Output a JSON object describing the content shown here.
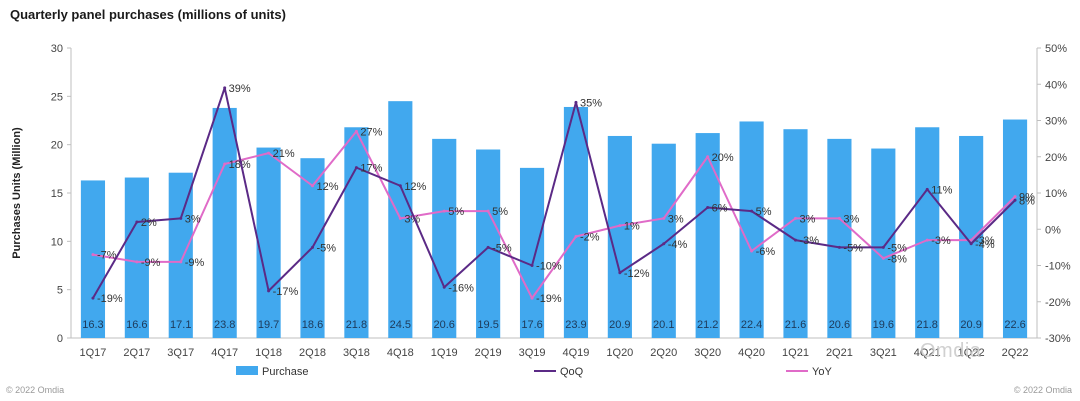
{
  "chart_data": {
    "type": "bar",
    "title": "Quarterly panel purchases (millions of units)",
    "ylabel": "Purchases Units (Million)",
    "ylim": [
      0,
      30
    ],
    "y_ticks": [
      0,
      5,
      10,
      15,
      20,
      25,
      30
    ],
    "y2lim": [
      -30,
      50
    ],
    "y2_ticks": [
      "-30%",
      "-20%",
      "-10%",
      "0%",
      "10%",
      "20%",
      "30%",
      "40%",
      "50%"
    ],
    "categories": [
      "1Q17",
      "2Q17",
      "3Q17",
      "4Q17",
      "1Q18",
      "2Q18",
      "3Q18",
      "4Q18",
      "1Q19",
      "2Q19",
      "3Q19",
      "4Q19",
      "1Q20",
      "2Q20",
      "3Q20",
      "4Q20",
      "1Q21",
      "2Q21",
      "3Q21",
      "4Q21",
      "1Q22",
      "2Q22"
    ],
    "series": [
      {
        "name": "Purchase",
        "type": "bar",
        "axis": "left",
        "color": "#41A8EE",
        "values": [
          16.3,
          16.6,
          17.1,
          23.8,
          19.7,
          18.6,
          21.8,
          24.5,
          20.6,
          19.5,
          17.6,
          23.9,
          20.9,
          20.1,
          21.2,
          22.4,
          21.6,
          20.6,
          19.6,
          21.8,
          20.9,
          22.6
        ],
        "labels": [
          "16.3",
          "16.6",
          "17.1",
          "23.8",
          "19.7",
          "18.6",
          "21.8",
          "24.5",
          "20.6",
          "19.5",
          "17.6",
          "23.9",
          "20.9",
          "20.1",
          "21.2",
          "22.4",
          "21.6",
          "20.6",
          "19.6",
          "21.8",
          "20.9",
          "22.6"
        ]
      },
      {
        "name": "QoQ",
        "type": "line",
        "axis": "right",
        "color": "#5B2A86",
        "values": [
          -19,
          2,
          3,
          39,
          -17,
          -5,
          17,
          12,
          -16,
          -5,
          -10,
          35,
          -12,
          -4,
          6,
          5,
          -3,
          -5,
          -5,
          11,
          -4,
          8
        ],
        "labels": [
          "-19%",
          "2%",
          "3%",
          "39%",
          "-17%",
          "-5%",
          "17%",
          "12%",
          "-16%",
          "-5%",
          "-10%",
          "35%",
          "-12%",
          "-4%",
          "6%",
          "5%",
          "-3%",
          "-5%",
          "-5%",
          "11%",
          "-4%",
          "8%"
        ]
      },
      {
        "name": "YoY",
        "type": "line",
        "axis": "right",
        "color": "#E06BC8",
        "values": [
          -7,
          -9,
          -9,
          18,
          21,
          12,
          27,
          3,
          5,
          5,
          -19,
          -2,
          1,
          3,
          20,
          -6,
          3,
          3,
          -8,
          -3,
          -3,
          9
        ],
        "labels": [
          "-7%",
          "-9%",
          "-9%",
          "18%",
          "21%",
          "12%",
          "27%",
          "3%",
          "5%",
          "5%",
          "-19%",
          "-2%",
          "1%",
          "3%",
          "20%",
          "-6%",
          "3%",
          "3%",
          "-8%",
          "-3%",
          "-3%",
          "9%"
        ]
      }
    ],
    "grid": false,
    "legend_placement": "bottom"
  },
  "footer": {
    "copyright_left": "© 2022 Omdia",
    "copyright_right": "© 2022 Omdia"
  },
  "watermark": {
    "text": "Omdia"
  }
}
